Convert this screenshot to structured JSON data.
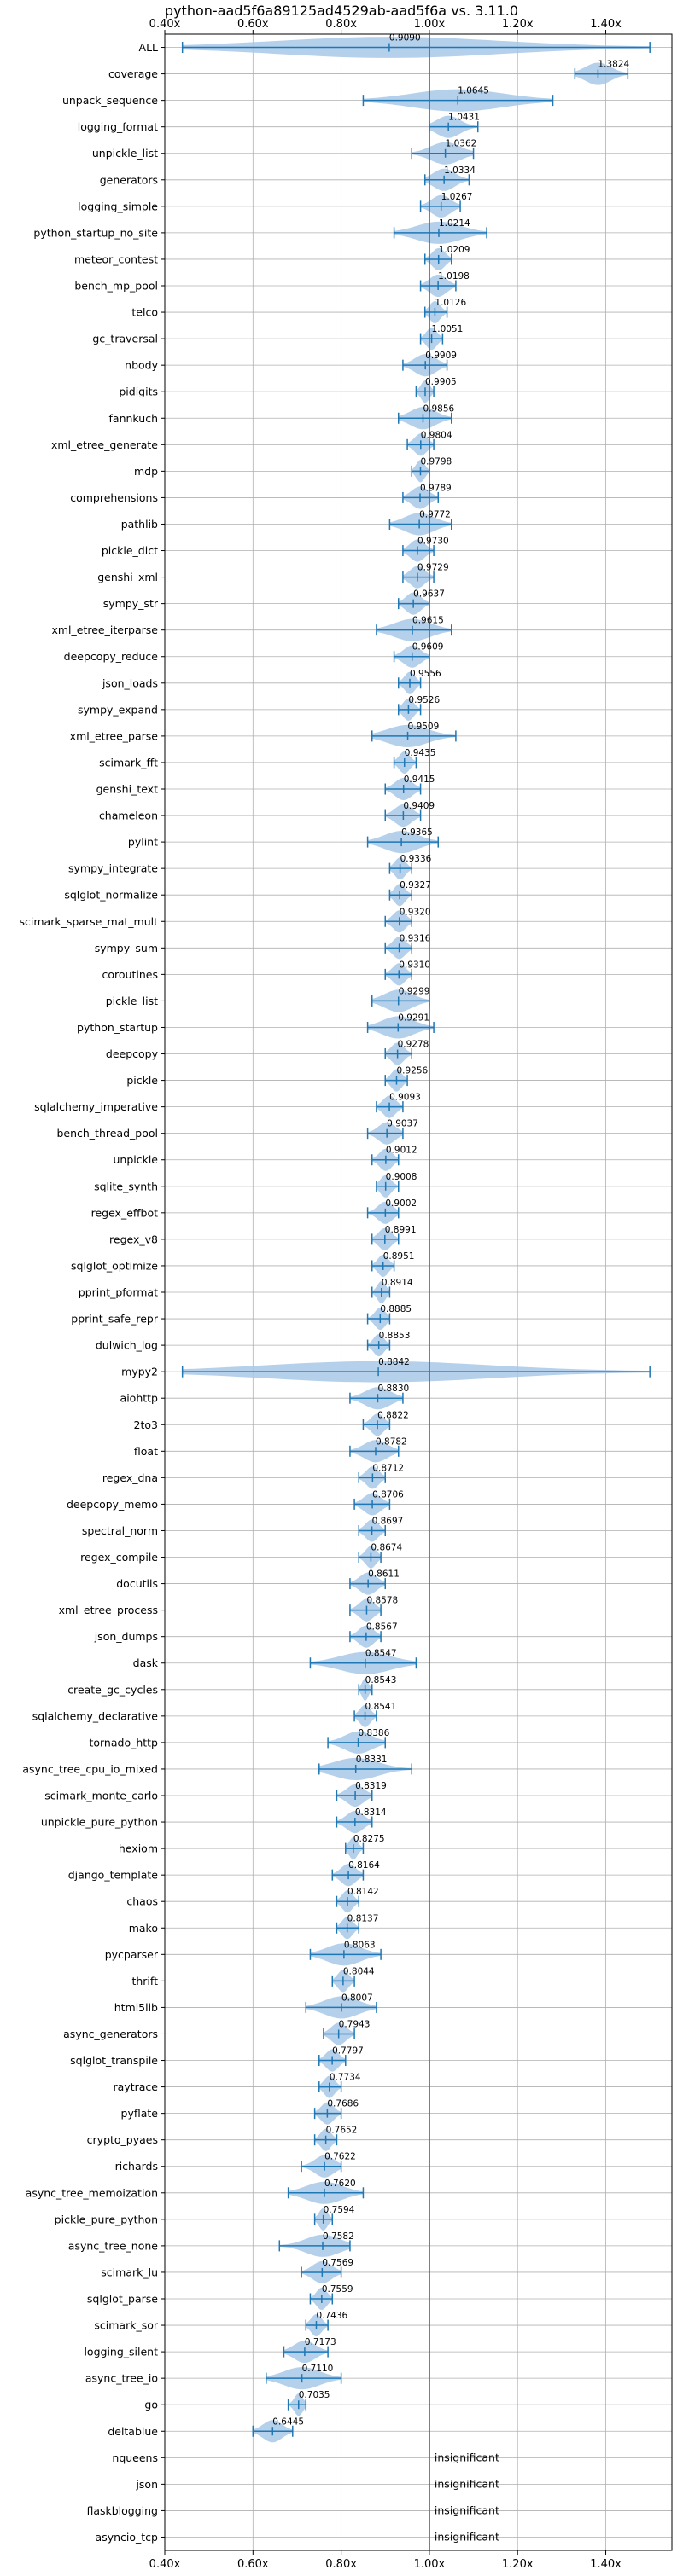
{
  "chart_data": {
    "type": "violin",
    "title": "python-aad5f6a89125ad4529ab-aad5f6a vs. 3.11.0",
    "xlabel": "",
    "ylabel": "",
    "xlim": [
      0.4,
      1.55
    ],
    "x_ticks": [
      0.4,
      0.6,
      0.8,
      1.0,
      1.2,
      1.4
    ],
    "x_tick_labels": [
      "0.40x",
      "0.60x",
      "0.80x",
      "1.00x",
      "1.20x",
      "1.40x"
    ],
    "reference_line": 1.0,
    "grid": true,
    "colors": {
      "body": "#a8c8e8",
      "line": "#1f77b4",
      "grid": "#b0b0b0"
    },
    "insignificant_text": "insignificant",
    "benchmarks": [
      {
        "name": "ALL",
        "value": 0.909,
        "label": "0.9090",
        "min": 0.44,
        "max": 1.5
      },
      {
        "name": "coverage",
        "value": 1.3824,
        "label": "1.3824",
        "min": 1.33,
        "max": 1.45
      },
      {
        "name": "unpack_sequence",
        "value": 1.0645,
        "label": "1.0645",
        "min": 0.85,
        "max": 1.28
      },
      {
        "name": "logging_format",
        "value": 1.0431,
        "label": "1.0431",
        "min": 1.0,
        "max": 1.11
      },
      {
        "name": "unpickle_list",
        "value": 1.0362,
        "label": "1.0362",
        "min": 0.96,
        "max": 1.1
      },
      {
        "name": "generators",
        "value": 1.0334,
        "label": "1.0334",
        "min": 0.99,
        "max": 1.09
      },
      {
        "name": "logging_simple",
        "value": 1.0267,
        "label": "1.0267",
        "min": 0.98,
        "max": 1.07
      },
      {
        "name": "python_startup_no_site",
        "value": 1.0214,
        "label": "1.0214",
        "min": 0.92,
        "max": 1.13
      },
      {
        "name": "meteor_contest",
        "value": 1.0209,
        "label": "1.0209",
        "min": 0.99,
        "max": 1.05
      },
      {
        "name": "bench_mp_pool",
        "value": 1.0198,
        "label": "1.0198",
        "min": 0.98,
        "max": 1.06
      },
      {
        "name": "telco",
        "value": 1.0126,
        "label": "1.0126",
        "min": 0.99,
        "max": 1.04
      },
      {
        "name": "gc_traversal",
        "value": 1.0051,
        "label": "1.0051",
        "min": 0.98,
        "max": 1.03
      },
      {
        "name": "nbody",
        "value": 0.9909,
        "label": "0.9909",
        "min": 0.94,
        "max": 1.04
      },
      {
        "name": "pidigits",
        "value": 0.9905,
        "label": "0.9905",
        "min": 0.97,
        "max": 1.01
      },
      {
        "name": "fannkuch",
        "value": 0.9856,
        "label": "0.9856",
        "min": 0.93,
        "max": 1.05
      },
      {
        "name": "xml_etree_generate",
        "value": 0.9804,
        "label": "0.9804",
        "min": 0.95,
        "max": 1.01
      },
      {
        "name": "mdp",
        "value": 0.9798,
        "label": "0.9798",
        "min": 0.96,
        "max": 1.0
      },
      {
        "name": "comprehensions",
        "value": 0.9789,
        "label": "0.9789",
        "min": 0.94,
        "max": 1.02
      },
      {
        "name": "pathlib",
        "value": 0.9772,
        "label": "0.9772",
        "min": 0.91,
        "max": 1.05
      },
      {
        "name": "pickle_dict",
        "value": 0.973,
        "label": "0.9730",
        "min": 0.94,
        "max": 1.01
      },
      {
        "name": "genshi_xml",
        "value": 0.9729,
        "label": "0.9729",
        "min": 0.94,
        "max": 1.01
      },
      {
        "name": "sympy_str",
        "value": 0.9637,
        "label": "0.9637",
        "min": 0.93,
        "max": 1.0
      },
      {
        "name": "xml_etree_iterparse",
        "value": 0.9615,
        "label": "0.9615",
        "min": 0.88,
        "max": 1.05
      },
      {
        "name": "deepcopy_reduce",
        "value": 0.9609,
        "label": "0.9609",
        "min": 0.92,
        "max": 1.0
      },
      {
        "name": "json_loads",
        "value": 0.9556,
        "label": "0.9556",
        "min": 0.93,
        "max": 0.98
      },
      {
        "name": "sympy_expand",
        "value": 0.9526,
        "label": "0.9526",
        "min": 0.93,
        "max": 0.98
      },
      {
        "name": "xml_etree_parse",
        "value": 0.9509,
        "label": "0.9509",
        "min": 0.87,
        "max": 1.06
      },
      {
        "name": "scimark_fft",
        "value": 0.9435,
        "label": "0.9435",
        "min": 0.92,
        "max": 0.97
      },
      {
        "name": "genshi_text",
        "value": 0.9415,
        "label": "0.9415",
        "min": 0.9,
        "max": 0.98
      },
      {
        "name": "chameleon",
        "value": 0.9409,
        "label": "0.9409",
        "min": 0.9,
        "max": 0.98
      },
      {
        "name": "pylint",
        "value": 0.9365,
        "label": "0.9365",
        "min": 0.86,
        "max": 1.02
      },
      {
        "name": "sympy_integrate",
        "value": 0.9336,
        "label": "0.9336",
        "min": 0.91,
        "max": 0.96
      },
      {
        "name": "sqlglot_normalize",
        "value": 0.9327,
        "label": "0.9327",
        "min": 0.91,
        "max": 0.96
      },
      {
        "name": "scimark_sparse_mat_mult",
        "value": 0.932,
        "label": "0.9320",
        "min": 0.9,
        "max": 0.96
      },
      {
        "name": "sympy_sum",
        "value": 0.9316,
        "label": "0.9316",
        "min": 0.9,
        "max": 0.96
      },
      {
        "name": "coroutines",
        "value": 0.931,
        "label": "0.9310",
        "min": 0.9,
        "max": 0.96
      },
      {
        "name": "pickle_list",
        "value": 0.9299,
        "label": "0.9299",
        "min": 0.87,
        "max": 1.0
      },
      {
        "name": "python_startup",
        "value": 0.9291,
        "label": "0.9291",
        "min": 0.86,
        "max": 1.01
      },
      {
        "name": "deepcopy",
        "value": 0.9278,
        "label": "0.9278",
        "min": 0.9,
        "max": 0.96
      },
      {
        "name": "pickle",
        "value": 0.9256,
        "label": "0.9256",
        "min": 0.9,
        "max": 0.95
      },
      {
        "name": "sqlalchemy_imperative",
        "value": 0.9093,
        "label": "0.9093",
        "min": 0.88,
        "max": 0.94
      },
      {
        "name": "bench_thread_pool",
        "value": 0.9037,
        "label": "0.9037",
        "min": 0.86,
        "max": 0.94
      },
      {
        "name": "unpickle",
        "value": 0.9012,
        "label": "0.9012",
        "min": 0.87,
        "max": 0.93
      },
      {
        "name": "sqlite_synth",
        "value": 0.9008,
        "label": "0.9008",
        "min": 0.88,
        "max": 0.93
      },
      {
        "name": "regex_effbot",
        "value": 0.9002,
        "label": "0.9002",
        "min": 0.86,
        "max": 0.93
      },
      {
        "name": "regex_v8",
        "value": 0.8991,
        "label": "0.8991",
        "min": 0.87,
        "max": 0.93
      },
      {
        "name": "sqlglot_optimize",
        "value": 0.8951,
        "label": "0.8951",
        "min": 0.87,
        "max": 0.92
      },
      {
        "name": "pprint_pformat",
        "value": 0.8914,
        "label": "0.8914",
        "min": 0.87,
        "max": 0.91
      },
      {
        "name": "pprint_safe_repr",
        "value": 0.8885,
        "label": "0.8885",
        "min": 0.86,
        "max": 0.91
      },
      {
        "name": "dulwich_log",
        "value": 0.8853,
        "label": "0.8853",
        "min": 0.86,
        "max": 0.91
      },
      {
        "name": "mypy2",
        "value": 0.8842,
        "label": "0.8842",
        "min": 0.44,
        "max": 1.5
      },
      {
        "name": "aiohttp",
        "value": 0.883,
        "label": "0.8830",
        "min": 0.82,
        "max": 0.94
      },
      {
        "name": "2to3",
        "value": 0.8822,
        "label": "0.8822",
        "min": 0.85,
        "max": 0.91
      },
      {
        "name": "float",
        "value": 0.8782,
        "label": "0.8782",
        "min": 0.82,
        "max": 0.93
      },
      {
        "name": "regex_dna",
        "value": 0.8712,
        "label": "0.8712",
        "min": 0.84,
        "max": 0.9
      },
      {
        "name": "deepcopy_memo",
        "value": 0.8706,
        "label": "0.8706",
        "min": 0.83,
        "max": 0.91
      },
      {
        "name": "spectral_norm",
        "value": 0.8697,
        "label": "0.8697",
        "min": 0.84,
        "max": 0.9
      },
      {
        "name": "regex_compile",
        "value": 0.8674,
        "label": "0.8674",
        "min": 0.84,
        "max": 0.89
      },
      {
        "name": "docutils",
        "value": 0.8611,
        "label": "0.8611",
        "min": 0.82,
        "max": 0.9
      },
      {
        "name": "xml_etree_process",
        "value": 0.8578,
        "label": "0.8578",
        "min": 0.82,
        "max": 0.89
      },
      {
        "name": "json_dumps",
        "value": 0.8567,
        "label": "0.8567",
        "min": 0.82,
        "max": 0.89
      },
      {
        "name": "dask",
        "value": 0.8547,
        "label": "0.8547",
        "min": 0.73,
        "max": 0.97
      },
      {
        "name": "create_gc_cycles",
        "value": 0.8543,
        "label": "0.8543",
        "min": 0.84,
        "max": 0.87
      },
      {
        "name": "sqlalchemy_declarative",
        "value": 0.8541,
        "label": "0.8541",
        "min": 0.83,
        "max": 0.88
      },
      {
        "name": "tornado_http",
        "value": 0.8386,
        "label": "0.8386",
        "min": 0.77,
        "max": 0.9
      },
      {
        "name": "async_tree_cpu_io_mixed",
        "value": 0.8331,
        "label": "0.8331",
        "min": 0.75,
        "max": 0.96
      },
      {
        "name": "scimark_monte_carlo",
        "value": 0.8319,
        "label": "0.8319",
        "min": 0.79,
        "max": 0.87
      },
      {
        "name": "unpickle_pure_python",
        "value": 0.8314,
        "label": "0.8314",
        "min": 0.79,
        "max": 0.87
      },
      {
        "name": "hexiom",
        "value": 0.8275,
        "label": "0.8275",
        "min": 0.81,
        "max": 0.85
      },
      {
        "name": "django_template",
        "value": 0.8164,
        "label": "0.8164",
        "min": 0.78,
        "max": 0.85
      },
      {
        "name": "chaos",
        "value": 0.8142,
        "label": "0.8142",
        "min": 0.79,
        "max": 0.84
      },
      {
        "name": "mako",
        "value": 0.8137,
        "label": "0.8137",
        "min": 0.79,
        "max": 0.84
      },
      {
        "name": "pycparser",
        "value": 0.8063,
        "label": "0.8063",
        "min": 0.73,
        "max": 0.89
      },
      {
        "name": "thrift",
        "value": 0.8044,
        "label": "0.8044",
        "min": 0.78,
        "max": 0.83
      },
      {
        "name": "html5lib",
        "value": 0.8007,
        "label": "0.8007",
        "min": 0.72,
        "max": 0.88
      },
      {
        "name": "async_generators",
        "value": 0.7943,
        "label": "0.7943",
        "min": 0.76,
        "max": 0.83
      },
      {
        "name": "sqlglot_transpile",
        "value": 0.7797,
        "label": "0.7797",
        "min": 0.75,
        "max": 0.81
      },
      {
        "name": "raytrace",
        "value": 0.7734,
        "label": "0.7734",
        "min": 0.75,
        "max": 0.8
      },
      {
        "name": "pyflate",
        "value": 0.7686,
        "label": "0.7686",
        "min": 0.74,
        "max": 0.8
      },
      {
        "name": "crypto_pyaes",
        "value": 0.7652,
        "label": "0.7652",
        "min": 0.74,
        "max": 0.79
      },
      {
        "name": "richards",
        "value": 0.7622,
        "label": "0.7622",
        "min": 0.71,
        "max": 0.8
      },
      {
        "name": "async_tree_memoization",
        "value": 0.762,
        "label": "0.7620",
        "min": 0.68,
        "max": 0.85
      },
      {
        "name": "pickle_pure_python",
        "value": 0.7594,
        "label": "0.7594",
        "min": 0.74,
        "max": 0.78
      },
      {
        "name": "async_tree_none",
        "value": 0.7582,
        "label": "0.7582",
        "min": 0.66,
        "max": 0.82
      },
      {
        "name": "scimark_lu",
        "value": 0.7569,
        "label": "0.7569",
        "min": 0.71,
        "max": 0.8
      },
      {
        "name": "sqlglot_parse",
        "value": 0.7559,
        "label": "0.7559",
        "min": 0.73,
        "max": 0.78
      },
      {
        "name": "scimark_sor",
        "value": 0.7436,
        "label": "0.7436",
        "min": 0.72,
        "max": 0.77
      },
      {
        "name": "logging_silent",
        "value": 0.7173,
        "label": "0.7173",
        "min": 0.67,
        "max": 0.77
      },
      {
        "name": "async_tree_io",
        "value": 0.711,
        "label": "0.7110",
        "min": 0.63,
        "max": 0.8
      },
      {
        "name": "go",
        "value": 0.7035,
        "label": "0.7035",
        "min": 0.68,
        "max": 0.72
      },
      {
        "name": "deltablue",
        "value": 0.6445,
        "label": "0.6445",
        "min": 0.6,
        "max": 0.69
      },
      {
        "name": "nqueens",
        "value": null,
        "label": "insignificant"
      },
      {
        "name": "json",
        "value": null,
        "label": "insignificant"
      },
      {
        "name": "flaskblogging",
        "value": null,
        "label": "insignificant"
      },
      {
        "name": "asyncio_tcp",
        "value": null,
        "label": "insignificant"
      }
    ]
  }
}
